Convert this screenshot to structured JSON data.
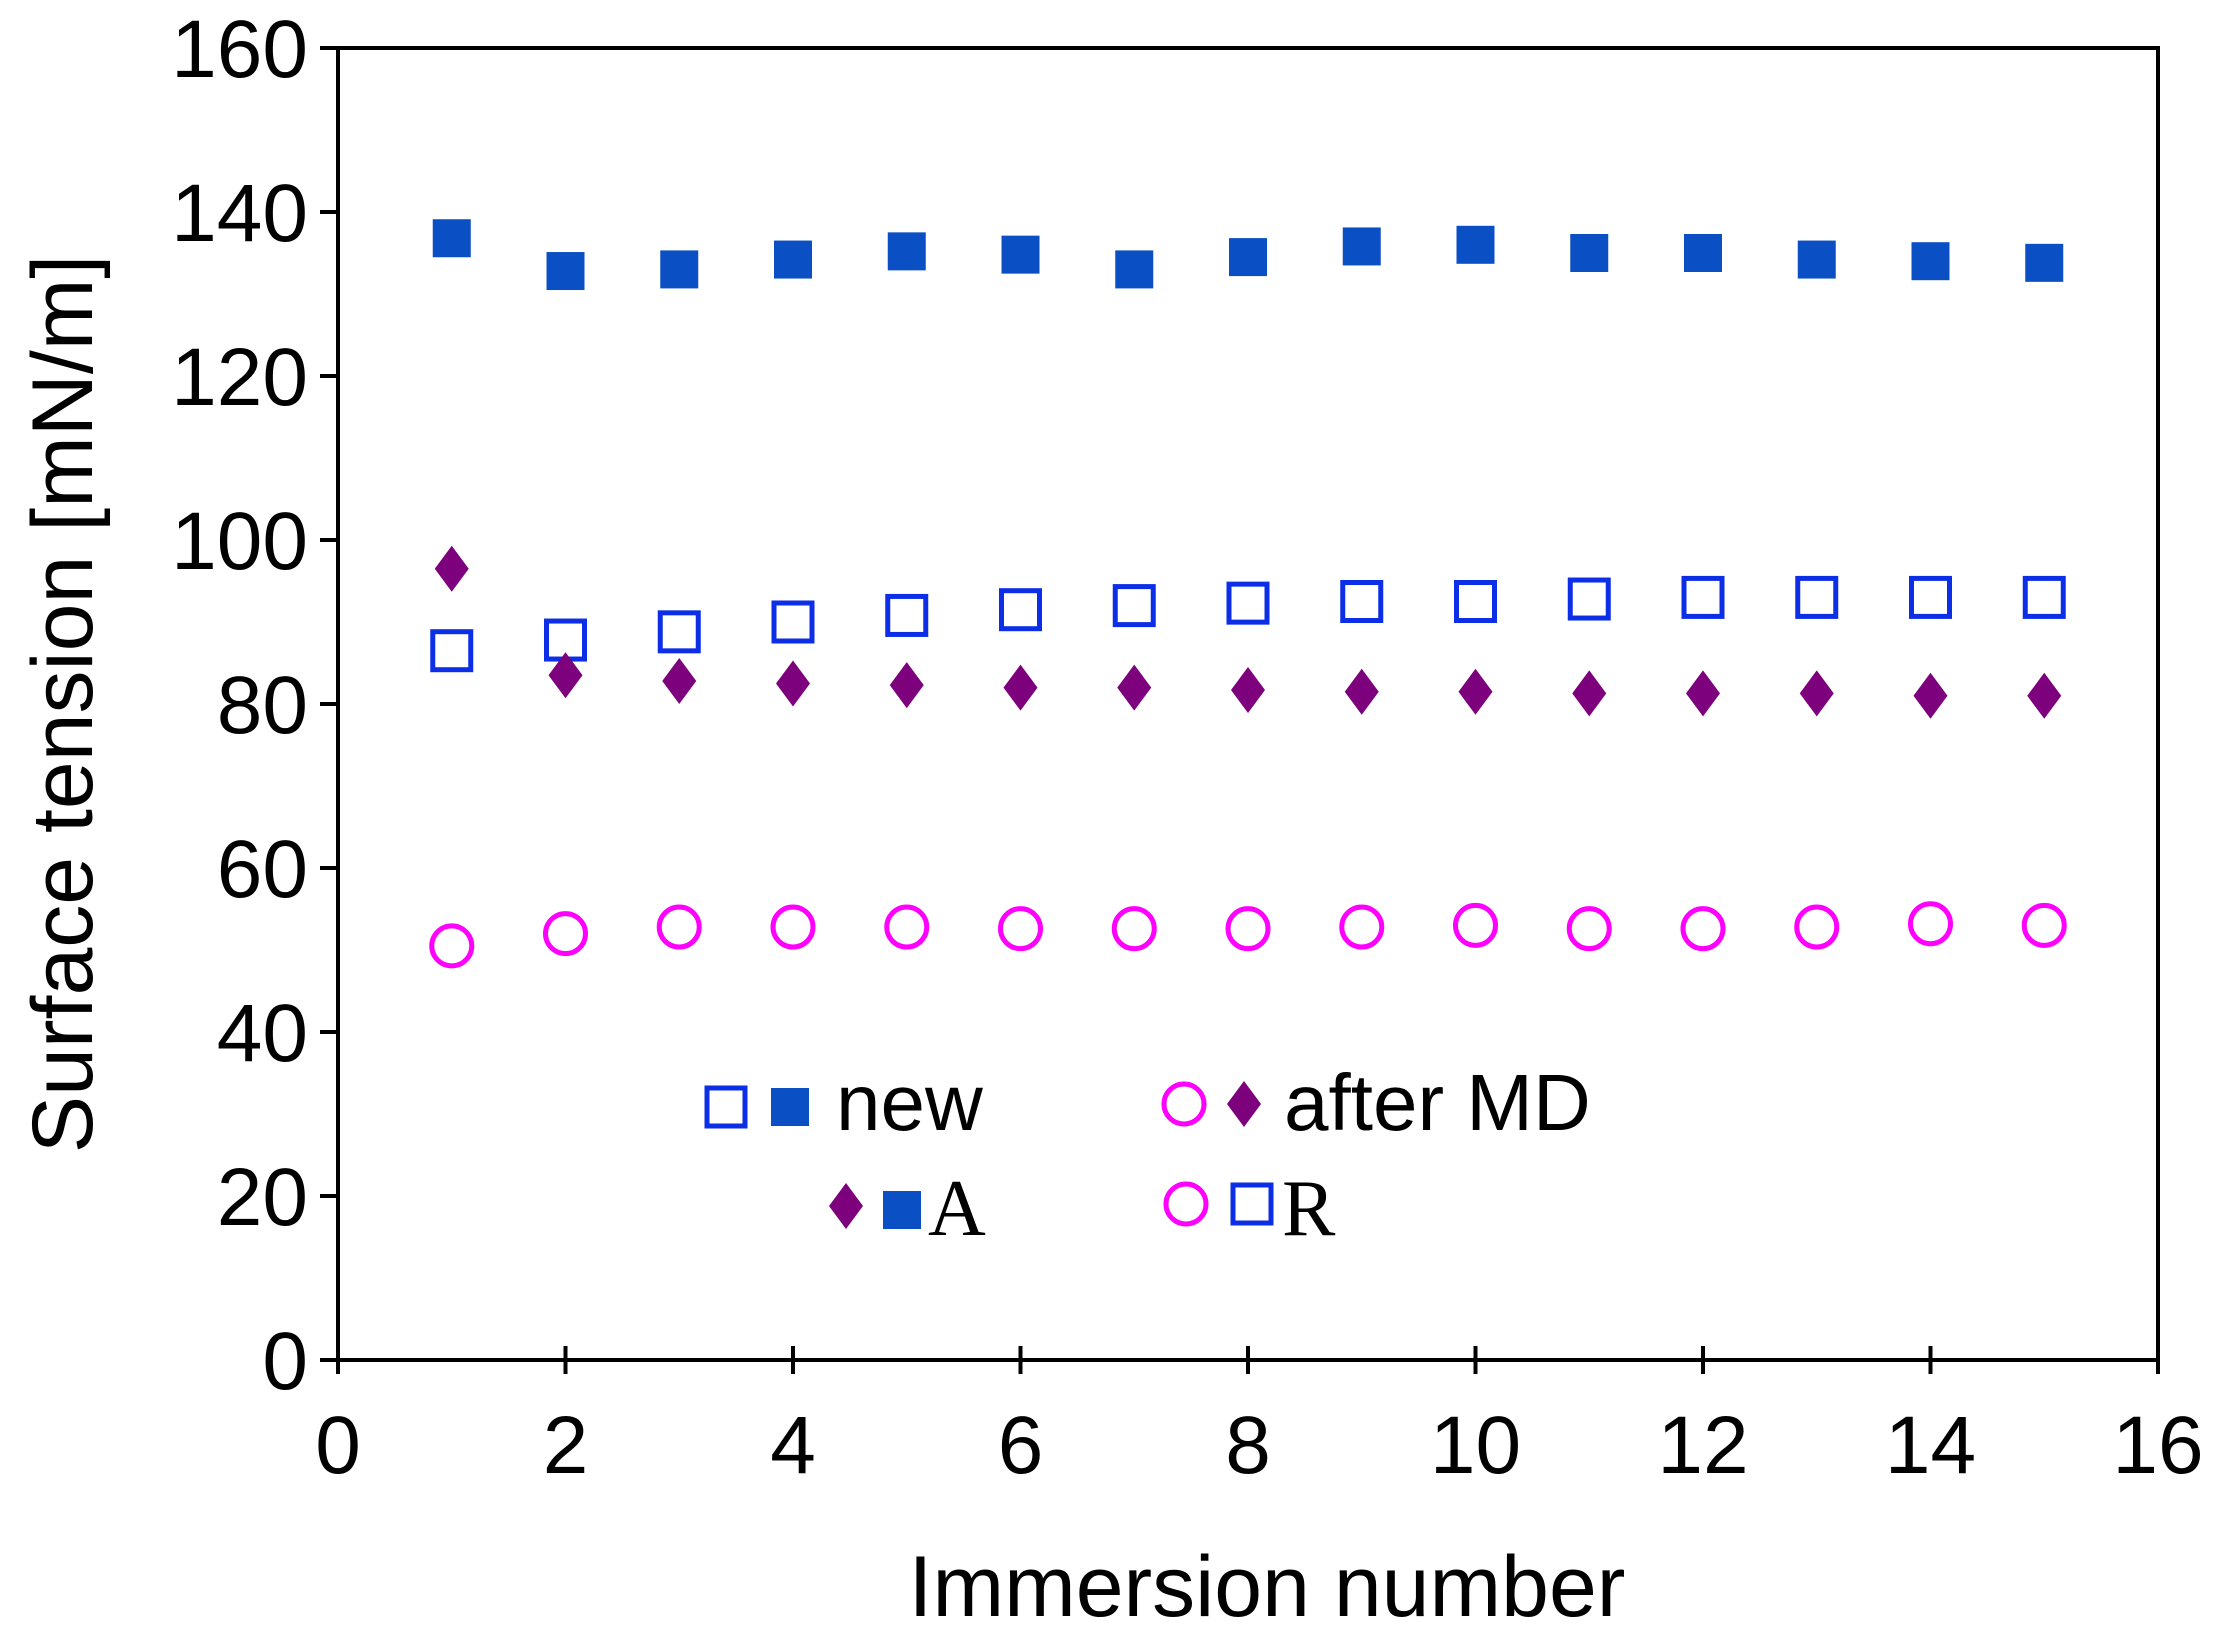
{
  "chart_data": {
    "type": "scatter",
    "title": "",
    "xlabel": "Immersion number",
    "ylabel": "Surface tension [mN/m]",
    "xlim": [
      0,
      16
    ],
    "ylim": [
      0,
      160
    ],
    "xticks": [
      "0",
      "2",
      "4",
      "6",
      "8",
      "10",
      "12",
      "14",
      "16"
    ],
    "yticks": [
      "0",
      "20",
      "40",
      "60",
      "80",
      "100",
      "120",
      "140",
      "160"
    ],
    "grid": false,
    "x": [
      1,
      2,
      3,
      4,
      5,
      6,
      7,
      8,
      9,
      10,
      11,
      12,
      13,
      14,
      15
    ],
    "series": [
      {
        "name": "new A",
        "marker": "filled-square",
        "color": "#0b4fc4",
        "values": [
          136.8,
          132.8,
          133.0,
          134.2,
          135.2,
          134.8,
          133.0,
          134.5,
          135.8,
          136.0,
          135.0,
          135.0,
          134.2,
          134.0,
          133.8
        ]
      },
      {
        "name": "new R",
        "marker": "open-square",
        "color": "#0b2ee6",
        "values": [
          86.5,
          87.8,
          88.8,
          90.0,
          90.8,
          91.5,
          92.0,
          92.3,
          92.5,
          92.5,
          92.8,
          93.0,
          93.0,
          93.0,
          93.0
        ]
      },
      {
        "name": "after MD A",
        "marker": "filled-diamond",
        "color": "#7d007d",
        "values": [
          96.5,
          83.5,
          82.8,
          82.5,
          82.3,
          82.0,
          82.0,
          81.7,
          81.5,
          81.5,
          81.3,
          81.3,
          81.3,
          81.0,
          81.0
        ]
      },
      {
        "name": "after MD R",
        "marker": "open-circle",
        "color": "#ff00ff",
        "values": [
          50.5,
          52.0,
          52.8,
          52.8,
          52.8,
          52.6,
          52.6,
          52.6,
          52.8,
          53.0,
          52.6,
          52.6,
          52.8,
          53.2,
          53.0
        ]
      }
    ],
    "legend": {
      "placement": "lower-center",
      "items": [
        {
          "label": "new",
          "markers": [
            "open-square",
            "filled-square"
          ],
          "colors": [
            "#0b2ee6",
            "#0b4fc4"
          ]
        },
        {
          "label": "after MD",
          "markers": [
            "open-circle",
            "filled-diamond"
          ],
          "colors": [
            "#ff00ff",
            "#7d007d"
          ]
        },
        {
          "label": "A",
          "markers": [
            "filled-diamond",
            "filled-square"
          ],
          "colors": [
            "#7d007d",
            "#0b4fc4"
          ]
        },
        {
          "label": "R",
          "markers": [
            "open-circle",
            "open-square"
          ],
          "colors": [
            "#ff00ff",
            "#0b2ee6"
          ]
        }
      ]
    }
  }
}
